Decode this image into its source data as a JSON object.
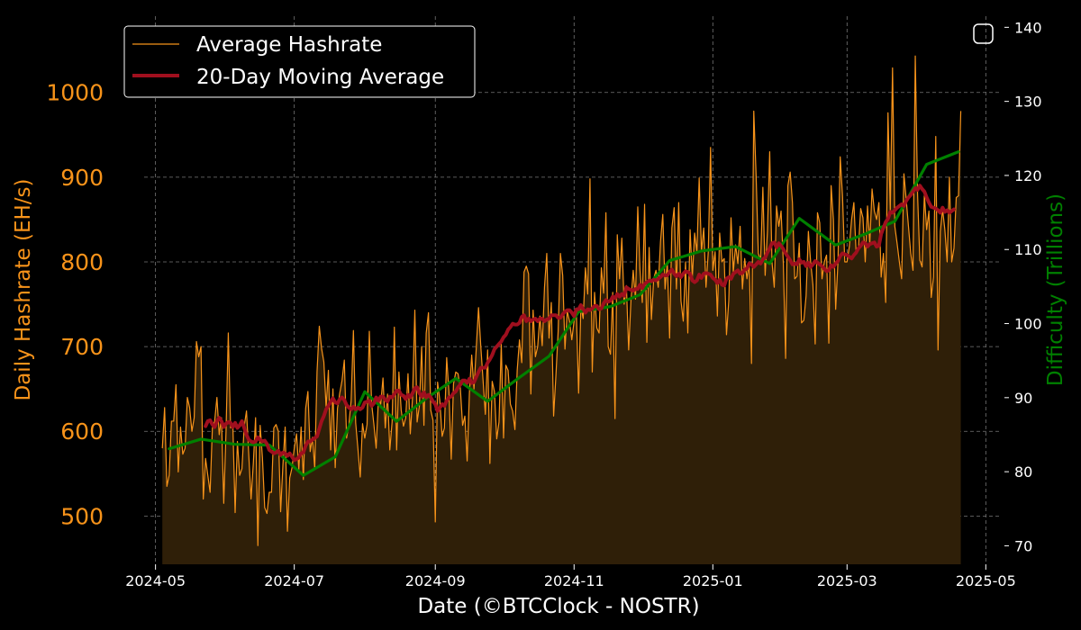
{
  "chart_data": {
    "type": "line",
    "xlabel": "Date (©BTCClock - NOSTR)",
    "ylabel_left": "Daily Hashrate (EH/s)",
    "ylabel_right": "Difficulty (Trillions)",
    "x_range": [
      "2024-04-26",
      "2025-05-08"
    ],
    "ylim_left": [
      443,
      1090
    ],
    "ylim_right": [
      67.5,
      141.5
    ],
    "x_ticks": [
      "2024-05",
      "2024-07",
      "2024-09",
      "2024-11",
      "2025-01",
      "2025-03",
      "2025-05"
    ],
    "x_tick_dates": [
      "2024-05-01",
      "2024-07-01",
      "2024-09-01",
      "2024-11-01",
      "2025-01-01",
      "2025-03-01",
      "2025-05-01"
    ],
    "y_ticks_left": [
      500,
      600,
      700,
      800,
      900,
      1000
    ],
    "y_ticks_right": [
      70,
      80,
      90,
      100,
      110,
      120,
      130,
      140
    ],
    "grid": true,
    "legend_position": "top-left",
    "colors": {
      "background": "#000000",
      "hashrate": "#f7931a",
      "fill": "#2f1f08",
      "moving_average": "#a00f1e",
      "difficulty": "#008000",
      "grid": "#777777"
    },
    "series": [
      {
        "name": "Average Hashrate",
        "axis": "left",
        "style": "thin-line-with-fill",
        "start": "2024-05-04",
        "step_days": 1,
        "values": [
          580,
          628,
          535,
          548,
          612,
          612,
          655,
          552,
          605,
          573,
          580,
          640,
          628,
          600,
          616,
          706,
          688,
          700,
          520,
          568,
          548,
          528,
          604,
          612,
          640,
          596,
          616,
          515,
          600,
          716,
          604,
          608,
          504,
          588,
          548,
          556,
          606,
          624,
          572,
          520,
          562,
          616,
          465,
          607,
          569,
          510,
          503,
          528,
          528,
          604,
          608,
          600,
          505,
          560,
          605,
          482,
          545,
          557,
          580,
          597,
          555,
          605,
          543,
          627,
          647,
          576,
          593,
          556,
          670,
          724,
          698,
          682,
          628,
          672,
          578,
          650,
          557,
          627,
          645,
          660,
          684,
          592,
          608,
          636,
          719,
          610,
          579,
          546,
          609,
          592,
          608,
          718,
          633,
          608,
          580,
          639,
          632,
          663,
          604,
          644,
          578,
          611,
          723,
          578,
          670,
          625,
          606,
          616,
          668,
          597,
          640,
          743,
          611,
          630,
          700,
          607,
          716,
          740,
          625,
          613,
          493,
          658,
          636,
          594,
          604,
          687,
          646,
          567,
          656,
          670,
          668,
          651,
          607,
          618,
          565,
          646,
          690,
          650,
          698,
          746,
          700,
          660,
          620,
          696,
          562,
          659,
          647,
          591,
          611,
          703,
          592,
          678,
          672,
          632,
          624,
          602,
          672,
          708,
          681,
          788,
          795,
          786,
          644,
          743,
          688,
          700,
          736,
          701,
          770,
          810,
          710,
          752,
          618,
          665,
          718,
          810,
          784,
          697,
          742,
          730,
          708,
          730,
          741,
          645,
          748,
          733,
          793,
          762,
          898,
          670,
          764,
          722,
          716,
          793,
          763,
          858,
          700,
          691,
          764,
          615,
          832,
          780,
          828,
          750,
          772,
          696,
          754,
          790,
          756,
          865,
          790,
          752,
          868,
          705,
          817,
          732,
          780,
          790,
          770,
          824,
          856,
          768,
          800,
          710,
          840,
          864,
          768,
          870,
          754,
          730,
          800,
          716,
          838,
          782,
          834,
          811,
          899,
          812,
          840,
          770,
          812,
          935,
          790,
          812,
          736,
          834,
          800,
          804,
          714,
          754,
          852,
          788,
          820,
          798,
          842,
          768,
          804,
          780,
          800,
          680,
          978,
          904,
          810,
          802,
          888,
          784,
          836,
          930,
          800,
          770,
          866,
          842,
          860,
          798,
          686,
          890,
          906,
          870,
          780,
          783,
          822,
          728,
          731,
          760,
          836,
          800,
          773,
          703,
          858,
          846,
          780,
          800,
          808,
          704,
          890,
          850,
          744,
          800,
          924,
          878,
          800,
          800,
          818,
          850,
          870,
          810,
          816,
          863,
          852,
          800,
          866,
          822,
          886,
          860,
          850,
          870,
          782,
          810,
          752,
          976,
          860,
          1029,
          842,
          822,
          800,
          780,
          904,
          874,
          842,
          810,
          790,
          1043,
          880,
          802,
          794,
          880,
          838,
          860,
          758,
          782,
          948,
          696,
          836,
          862,
          838,
          800,
          900,
          800,
          816,
          876,
          878,
          978
        ]
      },
      {
        "name": "20-Day Moving Average",
        "axis": "left",
        "style": "thick-line",
        "start": "2024-05-23",
        "step_days": 1,
        "values": [
          606,
          612,
          613,
          608,
          605,
          612,
          616,
          612,
          605,
          609,
          611,
          610,
          605,
          610,
          604,
          607,
          612,
          604,
          596,
          590,
          588,
          587,
          588,
          593,
          590,
          588,
          589,
          585,
          578,
          576,
          574,
          575,
          577,
          572,
          575,
          574,
          571,
          574,
          570,
          566,
          567,
          569,
          574,
          575,
          583,
          588,
          588,
          590,
          592,
          594,
          603,
          612,
          618,
          626,
          630,
          635,
          639,
          634,
          633,
          638,
          640,
          637,
          631,
          628,
          626,
          629,
          626,
          628,
          626,
          628,
          634,
          635,
          636,
          630,
          633,
          640,
          636,
          641,
          641,
          637,
          635,
          641,
          640,
          644,
          648,
          648,
          643,
          642,
          638,
          643,
          640,
          645,
          651,
          652,
          645,
          641,
          646,
          640,
          643,
          640,
          635,
          632,
          624,
          628,
          632,
          630,
          636,
          640,
          641,
          645,
          647,
          652,
          655,
          660,
          660,
          657,
          662,
          657,
          658,
          664,
          670,
          675,
          675,
          675,
          681,
          685,
          690,
          697,
          700,
          703,
          706,
          711,
          714,
          720,
          723,
          727,
          726,
          726,
          728,
          735,
          737,
          730,
          733,
          730,
          732,
          733,
          730,
          733,
          733,
          730,
          732,
          733,
          737,
          737,
          737,
          734,
          734,
          738,
          741,
          743,
          743,
          740,
          736,
          744,
          744,
          749,
          744,
          740,
          744,
          743,
          745,
          748,
          748,
          744,
          745,
          751,
          755,
          753,
          754,
          759,
          757,
          762,
          759,
          762,
          760,
          770,
          768,
          767,
          766,
          768,
          768,
          773,
          769,
          774,
          776,
          778,
          777,
          779,
          778,
          780,
          782,
          785,
          784,
          784,
          788,
          791,
          786,
          783,
          786,
          782,
          786,
          789,
          788,
          786,
          778,
          776,
          778,
          785,
          781,
          786,
          787,
          786,
          785,
          781,
          779,
          775,
          779,
          773,
          772,
          780,
          782,
          780,
          786,
          788,
          790,
          786,
          787,
          791,
          792,
          798,
          797,
          794,
          797,
          800,
          798,
          803,
          805,
          811,
          816,
          822,
          823,
          817,
          822,
          819,
          815,
          810,
          806,
          802,
          797,
          798,
          797,
          803,
          799,
          800,
          795,
          799,
          794,
          797,
          801,
          799,
          797,
          795,
          792,
          789,
          790,
          796,
          794,
          798,
          801,
          807,
          810,
          809,
          808,
          806,
          804,
          808,
          811,
          816,
          819,
          823,
          822,
          818,
          821,
          822,
          823,
          818,
          819,
          833,
          840,
          847,
          851,
          859,
          858,
          861,
          864,
          866,
          868,
          866,
          872,
          876,
          879,
          883,
          887,
          885,
          890,
          886,
          883,
          876,
          870,
          865,
          864,
          863,
          861,
          858,
          864,
          859,
          861,
          858,
          860,
          862
        ]
      },
      {
        "name": "Difficulty",
        "axis": "right",
        "style": "step-line",
        "dates": [
          "2024-05-07",
          "2024-05-21",
          "2024-06-05",
          "2024-06-20",
          "2024-07-05",
          "2024-07-19",
          "2024-08-01",
          "2024-08-15",
          "2024-08-28",
          "2024-09-10",
          "2024-09-24",
          "2024-10-07",
          "2024-10-21",
          "2024-11-03",
          "2024-11-17",
          "2024-11-30",
          "2024-12-13",
          "2024-12-27",
          "2025-01-11",
          "2025-01-26",
          "2025-02-08",
          "2025-02-24",
          "2025-03-09",
          "2025-03-22",
          "2025-04-05",
          "2025-04-19"
        ],
        "values": [
          83.1,
          84.4,
          83.7,
          83.6,
          79.5,
          82.0,
          90.8,
          86.8,
          89.9,
          92.6,
          89.5,
          92.5,
          95.6,
          101.6,
          102.3,
          103.9,
          108.5,
          109.8,
          110.4,
          108.1,
          114.2,
          110.6,
          112.1,
          113.8,
          121.5,
          123.2
        ]
      }
    ]
  },
  "legend": {
    "items": [
      {
        "label": "Average Hashrate",
        "style": "thin"
      },
      {
        "label": "20-Day Moving Average",
        "style": "thick"
      }
    ]
  }
}
